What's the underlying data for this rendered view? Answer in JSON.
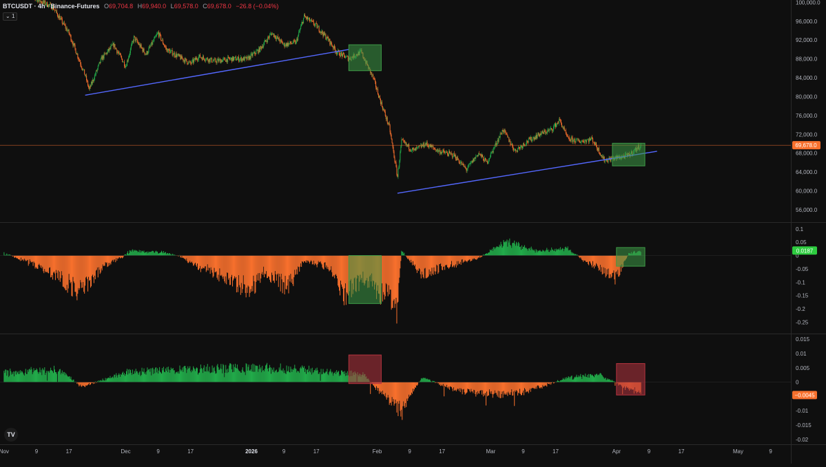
{
  "header": {
    "symbol": "BTCUSDT · 4h · Binance-Futures",
    "o_label": "O",
    "o_value": "69,704.8",
    "h_label": "H",
    "h_value": "69,940.0",
    "l_label": "L",
    "l_value": "69,578.0",
    "c_label": "C",
    "c_value": "69,678.0",
    "change": "−26.8 (−0.04%)",
    "indicator_toggle": "1"
  },
  "logo_text": "TV",
  "colors": {
    "background": "#0f0f0f",
    "up": "#22ab4a",
    "down": "#f7702d",
    "trendline": "#5468ff",
    "price_line": "#f7702d",
    "box_green": "#3e9b47",
    "box_red": "#b6343f"
  },
  "chart_data": [
    {
      "type": "candlestick",
      "symbol": "BTCUSDT",
      "timeframe": "4h",
      "last_price_label": "69,678.0",
      "yticks": [
        "100,000.0",
        "96,000.0",
        "92,000.0",
        "88,000.0",
        "84,000.0",
        "80,000.0",
        "76,000.0",
        "72,000.0",
        "68,000.0",
        "64,000.0",
        "60,000.0",
        "56,000.0"
      ],
      "ylim": [
        53500,
        100500
      ],
      "last_price": 69678,
      "close_path": [
        {
          "x": "2025-11-07",
          "y": 101500
        },
        {
          "x": "2025-11-13",
          "y": 99000
        },
        {
          "x": "2025-11-17",
          "y": 93500
        },
        {
          "x": "2025-11-21",
          "y": 84500
        },
        {
          "x": "2025-11-22",
          "y": 81500
        },
        {
          "x": "2025-11-25",
          "y": 88000
        },
        {
          "x": "2025-11-28",
          "y": 91000
        },
        {
          "x": "2025-12-01",
          "y": 86500
        },
        {
          "x": "2025-12-03",
          "y": 92500
        },
        {
          "x": "2025-12-06",
          "y": 89000
        },
        {
          "x": "2025-12-09",
          "y": 93500
        },
        {
          "x": "2025-12-11",
          "y": 90000
        },
        {
          "x": "2025-12-14",
          "y": 88500
        },
        {
          "x": "2025-12-17",
          "y": 87000
        },
        {
          "x": "2025-12-19",
          "y": 88500
        },
        {
          "x": "2025-12-23",
          "y": 87500
        },
        {
          "x": "2025-12-27",
          "y": 88000
        },
        {
          "x": "2025-12-31",
          "y": 88000
        },
        {
          "x": "2026-01-03",
          "y": 90000
        },
        {
          "x": "2026-01-06",
          "y": 93500
        },
        {
          "x": "2026-01-09",
          "y": 91000
        },
        {
          "x": "2026-01-12",
          "y": 91500
        },
        {
          "x": "2026-01-14",
          "y": 97000
        },
        {
          "x": "2026-01-17",
          "y": 95000
        },
        {
          "x": "2026-01-20",
          "y": 92000
        },
        {
          "x": "2026-01-22",
          "y": 89500
        },
        {
          "x": "2026-01-25",
          "y": 88000
        },
        {
          "x": "2026-01-28",
          "y": 89500
        },
        {
          "x": "2026-01-31",
          "y": 84000
        },
        {
          "x": "2026-02-02",
          "y": 78500
        },
        {
          "x": "2026-02-04",
          "y": 73500
        },
        {
          "x": "2026-02-06",
          "y": 63000
        },
        {
          "x": "2026-02-07",
          "y": 70500
        },
        {
          "x": "2026-02-10",
          "y": 68500
        },
        {
          "x": "2026-02-13",
          "y": 70000
        },
        {
          "x": "2026-02-16",
          "y": 68500
        },
        {
          "x": "2026-02-20",
          "y": 67500
        },
        {
          "x": "2026-02-23",
          "y": 64500
        },
        {
          "x": "2026-02-26",
          "y": 68000
        },
        {
          "x": "2026-02-28",
          "y": 66000
        },
        {
          "x": "2026-03-04",
          "y": 73000
        },
        {
          "x": "2026-03-07",
          "y": 68500
        },
        {
          "x": "2026-03-10",
          "y": 70500
        },
        {
          "x": "2026-03-13",
          "y": 72000
        },
        {
          "x": "2026-03-16",
          "y": 73000
        },
        {
          "x": "2026-03-18",
          "y": 75000
        },
        {
          "x": "2026-03-20",
          "y": 71000
        },
        {
          "x": "2026-03-23",
          "y": 70500
        },
        {
          "x": "2026-03-26",
          "y": 71000
        },
        {
          "x": "2026-03-29",
          "y": 66500
        },
        {
          "x": "2026-04-01",
          "y": 67000
        },
        {
          "x": "2026-04-04",
          "y": 67500
        },
        {
          "x": "2026-04-06",
          "y": 69000
        },
        {
          "x": "2026-04-07",
          "y": 69678
        }
      ],
      "trendlines": [
        {
          "x": [
            "2025-11-21",
            "2026-01-25"
          ],
          "y": [
            80300,
            90000
          ]
        },
        {
          "x": [
            "2026-02-06",
            "2026-04-11"
          ],
          "y": [
            59500,
            68400
          ]
        }
      ],
      "highlight_boxes": [
        {
          "x": [
            "2026-01-25",
            "2026-02-02"
          ],
          "y": [
            85500,
            91000
          ],
          "color": "green"
        },
        {
          "x": [
            "2026-03-31",
            "2026-04-08"
          ],
          "y": [
            65300,
            70100
          ],
          "color": "green"
        }
      ]
    },
    {
      "type": "histogram",
      "current_value_label": "0.0187",
      "current_value": 0.0187,
      "yticks": [
        "0.1",
        "0.05",
        "0",
        "-0.05",
        "-0.1",
        "-0.15",
        "-0.2",
        "-0.25"
      ],
      "ylim": [
        -0.29,
        0.12
      ],
      "envelope": [
        {
          "x": "2025-11-01",
          "y": 0.01
        },
        {
          "x": "2025-11-10",
          "y": -0.05
        },
        {
          "x": "2025-11-20",
          "y": -0.16
        },
        {
          "x": "2025-11-26",
          "y": -0.04
        },
        {
          "x": "2025-11-30",
          "y": -0.01
        },
        {
          "x": "2025-12-02",
          "y": 0.02
        },
        {
          "x": "2025-12-10",
          "y": 0.015
        },
        {
          "x": "2025-12-14",
          "y": 0.0
        },
        {
          "x": "2025-12-18",
          "y": -0.04
        },
        {
          "x": "2025-12-27",
          "y": -0.11
        },
        {
          "x": "2026-01-01",
          "y": -0.15
        },
        {
          "x": "2026-01-04",
          "y": -0.07
        },
        {
          "x": "2026-01-10",
          "y": -0.14
        },
        {
          "x": "2026-01-14",
          "y": -0.02
        },
        {
          "x": "2026-01-20",
          "y": -0.05
        },
        {
          "x": "2026-01-24",
          "y": -0.17
        },
        {
          "x": "2026-01-29",
          "y": -0.1
        },
        {
          "x": "2026-02-03",
          "y": -0.18
        },
        {
          "x": "2026-02-06",
          "y": -0.24
        },
        {
          "x": "2026-02-07",
          "y": 0.02
        },
        {
          "x": "2026-02-12",
          "y": -0.08
        },
        {
          "x": "2026-02-20",
          "y": -0.04
        },
        {
          "x": "2026-02-26",
          "y": -0.01
        },
        {
          "x": "2026-03-01",
          "y": 0.02
        },
        {
          "x": "2026-03-05",
          "y": 0.06
        },
        {
          "x": "2026-03-12",
          "y": 0.02
        },
        {
          "x": "2026-03-20",
          "y": 0.03
        },
        {
          "x": "2026-03-24",
          "y": -0.02
        },
        {
          "x": "2026-03-28",
          "y": -0.06
        },
        {
          "x": "2026-04-01",
          "y": -0.1
        },
        {
          "x": "2026-04-04",
          "y": 0.01
        },
        {
          "x": "2026-04-07",
          "y": 0.0187
        }
      ],
      "highlight_boxes": [
        {
          "x": [
            "2026-01-25",
            "2026-02-02"
          ],
          "y": [
            -0.18,
            0.0
          ],
          "color": "green"
        },
        {
          "x": [
            "2026-04-01",
            "2026-04-08"
          ],
          "y": [
            -0.04,
            0.03
          ],
          "color": "green"
        }
      ]
    },
    {
      "type": "histogram",
      "current_value_label": "−0.0045",
      "current_value": -0.0045,
      "yticks": [
        "0.015",
        "0.01",
        "0.005",
        "0",
        "-0.005",
        "-0.01",
        "-0.015",
        "-0.02"
      ],
      "ylim": [
        -0.0215,
        0.0165
      ],
      "envelope": [
        {
          "x": "2025-11-01",
          "y": 0.004
        },
        {
          "x": "2025-11-15",
          "y": 0.005
        },
        {
          "x": "2025-11-20",
          "y": -0.002
        },
        {
          "x": "2025-12-01",
          "y": 0.004
        },
        {
          "x": "2025-12-15",
          "y": 0.005
        },
        {
          "x": "2026-01-01",
          "y": 0.006
        },
        {
          "x": "2026-01-15",
          "y": 0.005
        },
        {
          "x": "2026-01-29",
          "y": 0.003
        },
        {
          "x": "2026-02-01",
          "y": -0.003
        },
        {
          "x": "2026-02-07",
          "y": -0.012
        },
        {
          "x": "2026-02-12",
          "y": 0.002
        },
        {
          "x": "2026-02-20",
          "y": -0.003
        },
        {
          "x": "2026-03-01",
          "y": -0.005
        },
        {
          "x": "2026-03-10",
          "y": -0.004
        },
        {
          "x": "2026-03-20",
          "y": 0.002
        },
        {
          "x": "2026-03-28",
          "y": 0.003
        },
        {
          "x": "2026-04-04",
          "y": -0.003
        },
        {
          "x": "2026-04-07",
          "y": -0.0045
        }
      ],
      "highlight_boxes": [
        {
          "x": [
            "2026-01-25",
            "2026-02-02"
          ],
          "y": [
            -0.0005,
            0.0095
          ],
          "color": "red"
        },
        {
          "x": [
            "2026-04-01",
            "2026-04-08"
          ],
          "y": [
            -0.0045,
            0.0065
          ],
          "color": "red"
        }
      ]
    }
  ],
  "x_axis": {
    "xlim": [
      "2025-10-31",
      "2026-05-14"
    ],
    "ticks": [
      {
        "x": "2025-11-01",
        "label": "Nov",
        "bold": false
      },
      {
        "x": "2025-11-09",
        "label": "9",
        "bold": false
      },
      {
        "x": "2025-11-17",
        "label": "17",
        "bold": false
      },
      {
        "x": "2025-12-01",
        "label": "Dec",
        "bold": false
      },
      {
        "x": "2025-12-09",
        "label": "9",
        "bold": false
      },
      {
        "x": "2025-12-17",
        "label": "17",
        "bold": false
      },
      {
        "x": "2026-01-01",
        "label": "2026",
        "bold": true
      },
      {
        "x": "2026-01-09",
        "label": "9",
        "bold": false
      },
      {
        "x": "2026-01-17",
        "label": "17",
        "bold": false
      },
      {
        "x": "2026-02-01",
        "label": "Feb",
        "bold": false
      },
      {
        "x": "2026-02-09",
        "label": "9",
        "bold": false
      },
      {
        "x": "2026-02-17",
        "label": "17",
        "bold": false
      },
      {
        "x": "2026-03-01",
        "label": "Mar",
        "bold": false
      },
      {
        "x": "2026-03-09",
        "label": "9",
        "bold": false
      },
      {
        "x": "2026-03-17",
        "label": "17",
        "bold": false
      },
      {
        "x": "2026-04-01",
        "label": "Apr",
        "bold": false
      },
      {
        "x": "2026-04-09",
        "label": "9",
        "bold": false
      },
      {
        "x": "2026-04-17",
        "label": "17",
        "bold": false
      },
      {
        "x": "2026-05-01",
        "label": "May",
        "bold": false
      },
      {
        "x": "2026-05-09",
        "label": "9",
        "bold": false
      }
    ]
  }
}
